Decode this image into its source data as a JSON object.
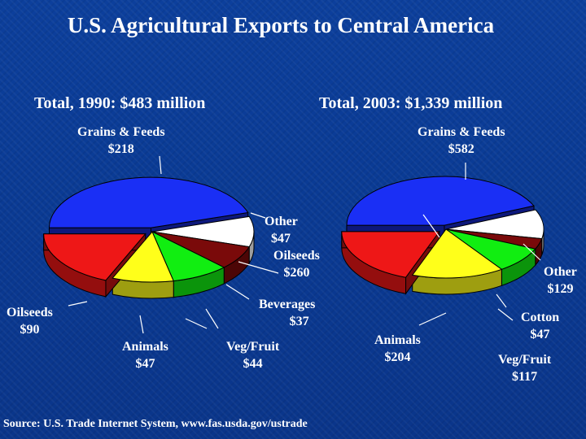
{
  "title": "U.S. Agricultural Exports to Central America",
  "source": "Source:  U.S. Trade Internet System, www.fas.usda.gov/ustrade",
  "colors": {
    "background": "#0b3a93",
    "blue": "#1a2ff5",
    "white": "#ffffff",
    "maroon": "#7a0a0a",
    "green": "#11ee11",
    "yellow": "#ffff1a",
    "red": "#ee1717"
  },
  "chart_data": [
    {
      "type": "pie",
      "title": "Total, 1990:  $483 million",
      "unit": "$ million",
      "slices": [
        {
          "name": "Grains & Feeds",
          "value": 218,
          "label": "$218",
          "color": "#1a2ff5"
        },
        {
          "name": "Other",
          "value": 47,
          "label": "$47",
          "color": "#ffffff"
        },
        {
          "name": "Beverages",
          "value": 37,
          "label": "$37",
          "color": "#7a0a0a"
        },
        {
          "name": "Veg/Fruit",
          "value": 44,
          "label": "$44",
          "color": "#11ee11"
        },
        {
          "name": "Animals",
          "value": 47,
          "label": "$47",
          "color": "#ffff1a"
        },
        {
          "name": "Oilseeds",
          "value": 90,
          "label": "$90",
          "color": "#ee1717"
        }
      ]
    },
    {
      "type": "pie",
      "title": "Total, 2003:  $1,339 million",
      "unit": "$ million",
      "slices": [
        {
          "name": "Grains & Feeds",
          "value": 582,
          "label": "$582",
          "color": "#1a2ff5"
        },
        {
          "name": "Other",
          "value": 129,
          "label": "$129",
          "color": "#ffffff"
        },
        {
          "name": "Cotton",
          "value": 47,
          "label": "$47",
          "color": "#7a0a0a"
        },
        {
          "name": "Veg/Fruit",
          "value": 117,
          "label": "$117",
          "color": "#11ee11"
        },
        {
          "name": "Animals",
          "value": 204,
          "label": "$204",
          "color": "#ffff1a"
        },
        {
          "name": "Oilseeds",
          "value": 260,
          "label": "$260",
          "color": "#ee1717"
        }
      ]
    }
  ]
}
